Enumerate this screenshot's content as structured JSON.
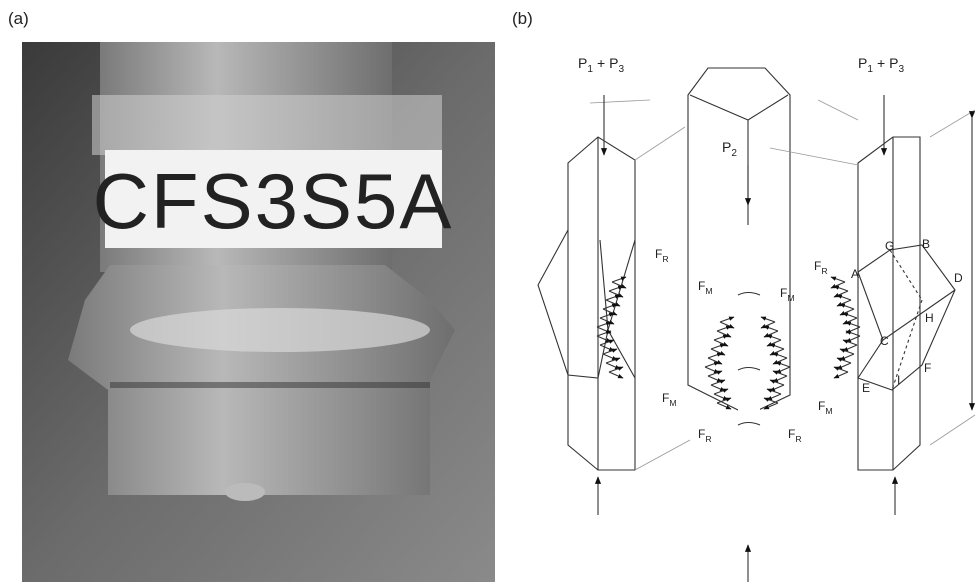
{
  "panel_a": {
    "label": "(a)",
    "specimen_tag": "CFS3S5A"
  },
  "panel_b": {
    "label": "(b)",
    "loads": [
      {
        "first": {
          "base": "P",
          "sub": "1"
        },
        "joiner": "+",
        "second": {
          "base": "P",
          "sub": "3"
        }
      },
      {
        "first": {
          "base": "P",
          "sub": "1"
        },
        "joiner": "+",
        "second": {
          "base": "P",
          "sub": "3"
        }
      },
      {
        "base": "P",
        "sub": "2"
      }
    ],
    "forces": [
      {
        "base": "F",
        "sub": "R"
      },
      {
        "base": "F",
        "sub": "M"
      },
      {
        "base": "F",
        "sub": "M"
      },
      {
        "base": "F",
        "sub": "M"
      },
      {
        "base": "F",
        "sub": "R"
      },
      {
        "base": "F",
        "sub": "R"
      },
      {
        "base": "F",
        "sub": "R"
      },
      {
        "base": "F",
        "sub": "M"
      }
    ],
    "points": [
      "G",
      "B",
      "A",
      "D",
      "H",
      "C",
      "F",
      "E",
      "I"
    ]
  }
}
